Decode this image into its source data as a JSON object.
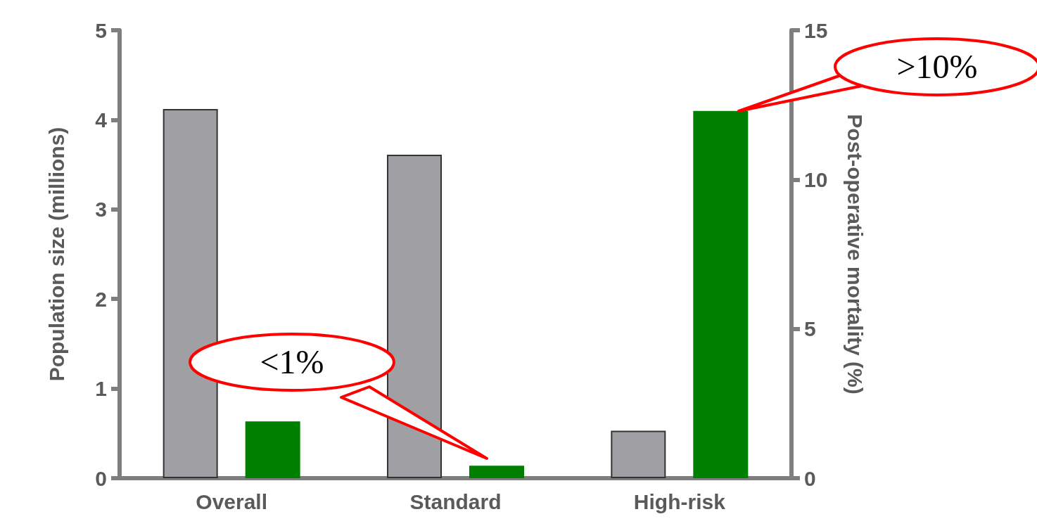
{
  "chart_data": {
    "type": "bar",
    "ylabel": "Population size (millions)",
    "y2label": "Post-operative mortality (%)",
    "categories": [
      "Overall",
      "Standard",
      "High-risk"
    ],
    "series": [
      {
        "color": "#a0a0a4",
        "values": [
          4.12,
          3.61,
          0.53
        ]
      },
      {
        "color": "#008000",
        "axis": "y2",
        "values": [
          1.9,
          0.42,
          12.3
        ]
      }
    ],
    "ylim": [
      0,
      5
    ],
    "yticks": [
      0,
      1,
      2,
      3,
      4,
      5
    ],
    "y2lim": [
      0,
      15
    ],
    "y2ticks": [
      0,
      5,
      10,
      15
    ],
    "grid": false,
    "annotations": [
      "<1%",
      ">10%"
    ]
  }
}
